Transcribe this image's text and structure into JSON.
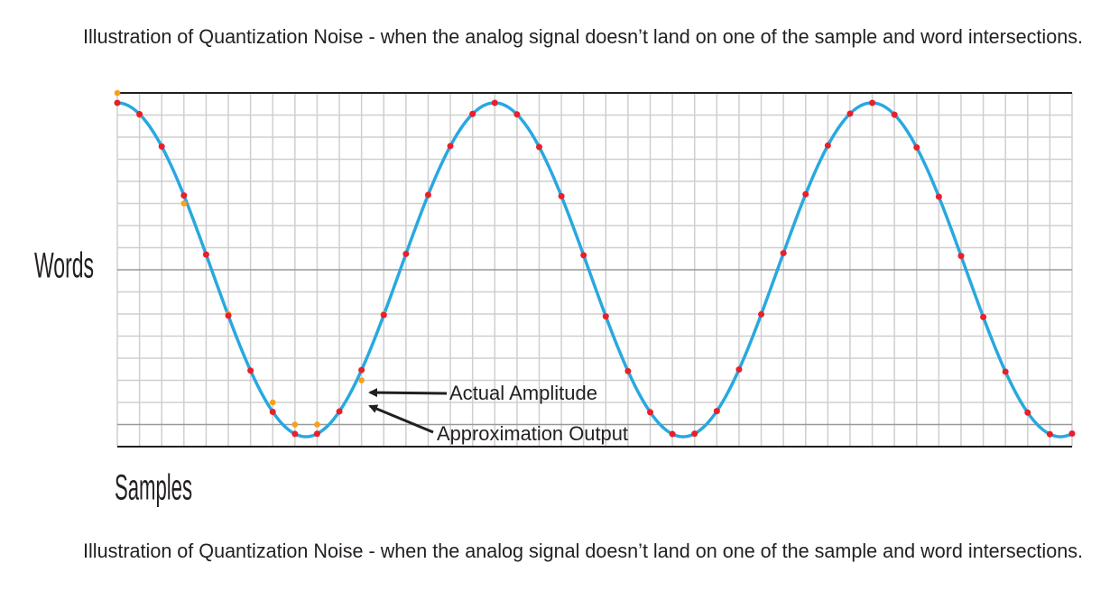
{
  "caption_top": "Illustration of Quantization Noise - when the analog signal doesn’t land on one of the sample and word intersections.",
  "y_label": "Words",
  "x_label": "Samples",
  "annotations": [
    "Actual Amplitude",
    "Approximation Output"
  ],
  "caption_bottom": "Illustration of Quantization Noise - when the analog signal doesn’t land on one of the sample and word intersections."
}
